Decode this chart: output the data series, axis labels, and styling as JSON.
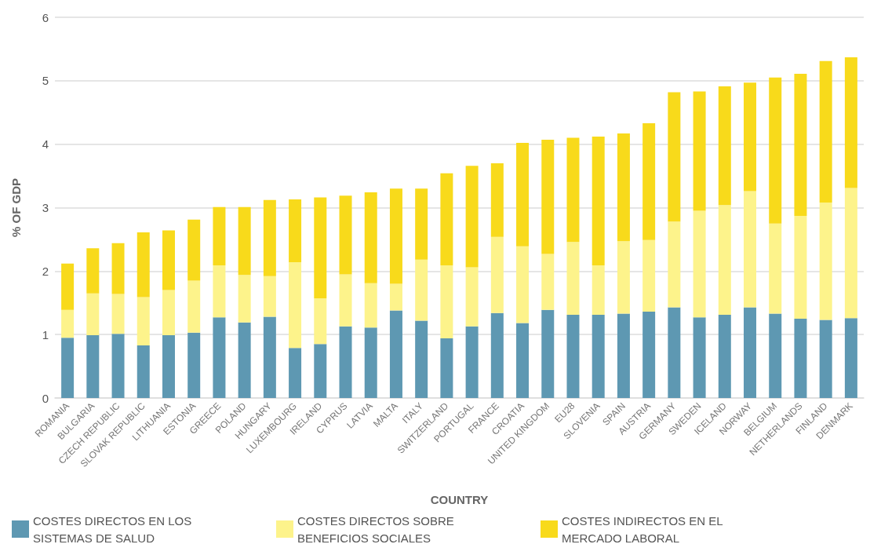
{
  "chart_data": {
    "type": "bar",
    "stacked": true,
    "xlabel": "COUNTRY",
    "ylabel": "% OF GDP",
    "categories": [
      "ROMANIA",
      "BULGARIA",
      "CZECH REPUBLIC",
      "SLOVAK REPUBLIC",
      "LITHUANIA",
      "ESTONIA",
      "GREECE",
      "POLAND",
      "HUNGARY",
      "LUXEMBOURG",
      "IRELAND",
      "CYPRUS",
      "LATVIA",
      "MALTA",
      "ITALY",
      "SWITZERLAND",
      "PORTUGAL",
      "FRANCE",
      "CROATIA",
      "UNITED KINGDOM",
      "EU28",
      "SLOVENIA",
      "SPAIN",
      "AUSTRIA",
      "GERMANY",
      "SWEDEN",
      "ICELAND",
      "NORWAY",
      "BELGIUM",
      "NETHERLANDS",
      "FINLAND",
      "DENMARK"
    ],
    "series": [
      {
        "name": "COSTES DIRECTOS EN LOS SISTEMAS DE SALUD",
        "color": "#5e98b2",
        "values": [
          0.95,
          0.99,
          1.01,
          0.83,
          0.99,
          1.03,
          1.27,
          1.19,
          1.28,
          0.79,
          0.85,
          1.13,
          1.11,
          1.38,
          1.22,
          0.94,
          1.13,
          1.34,
          1.18,
          1.39,
          1.31,
          1.31,
          1.33,
          1.36,
          1.43,
          1.27,
          1.31,
          1.43,
          1.33,
          1.25,
          1.23,
          1.26
        ]
      },
      {
        "name": "COSTES DIRECTOS SOBRE BENEFICIOS SOCIALES",
        "color": "#fdf38b",
        "values": [
          0.44,
          0.66,
          0.63,
          0.76,
          0.71,
          0.82,
          0.82,
          0.75,
          0.64,
          1.35,
          0.72,
          0.82,
          0.7,
          0.42,
          0.96,
          1.15,
          0.93,
          1.2,
          1.21,
          0.88,
          1.15,
          0.78,
          1.14,
          1.13,
          1.35,
          1.68,
          1.73,
          1.83,
          1.42,
          1.62,
          1.85,
          2.05
        ]
      },
      {
        "name": "COSTES INDIRECTOS EN EL MERCADO LABORAL",
        "color": "#f8da1b",
        "values": [
          0.73,
          0.71,
          0.8,
          1.02,
          0.94,
          0.96,
          0.92,
          1.07,
          1.2,
          0.99,
          1.59,
          1.24,
          1.43,
          1.5,
          1.12,
          1.45,
          1.6,
          1.16,
          1.63,
          1.8,
          1.64,
          2.03,
          1.7,
          1.84,
          2.04,
          1.88,
          1.87,
          1.71,
          2.3,
          2.24,
          2.23,
          2.06
        ]
      }
    ],
    "ylim": [
      0,
      6
    ],
    "yticks": [
      0,
      1,
      2,
      3,
      4,
      5,
      6
    ],
    "grid": "y",
    "legend": "bottom"
  }
}
